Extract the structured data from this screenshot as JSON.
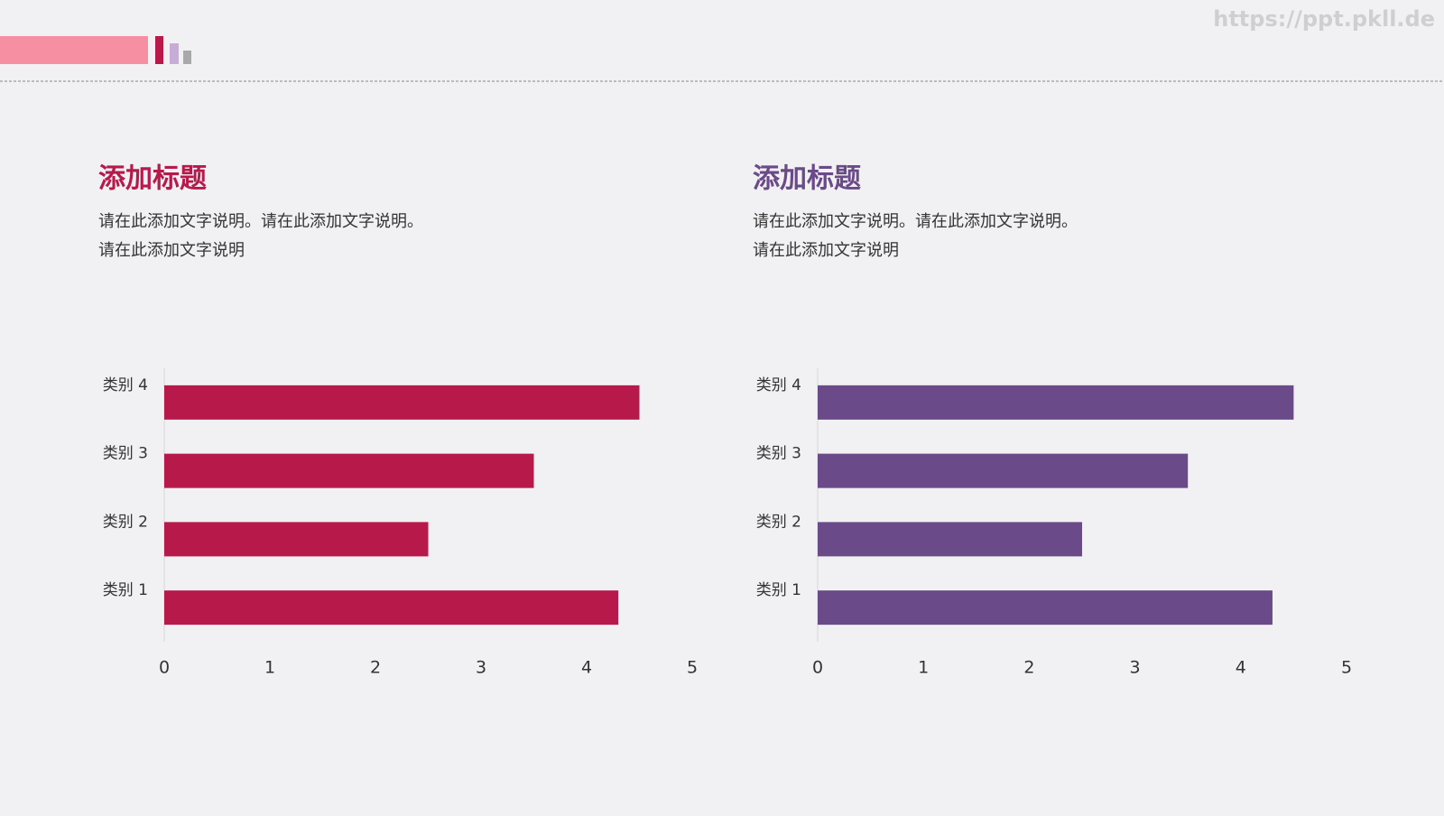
{
  "watermark": "https://ppt.pkll.de",
  "chart_data": [
    {
      "type": "bar",
      "orientation": "horizontal",
      "title": "添加标题",
      "description": [
        "请在此添加文字说明。请在此添加文字说明。",
        "请在此添加文字说明"
      ],
      "categories": [
        "类别 1",
        "类别 2",
        "类别 3",
        "类别 4"
      ],
      "values": [
        4.3,
        2.5,
        3.5,
        4.5
      ],
      "color": "#b8194b",
      "xlim": [
        0,
        5
      ],
      "xticks": [
        0,
        1,
        2,
        3,
        4,
        5
      ]
    },
    {
      "type": "bar",
      "orientation": "horizontal",
      "title": "添加标题",
      "description": [
        "请在此添加文字说明。请在此添加文字说明。",
        "请在此添加文字说明"
      ],
      "categories": [
        "类别 1",
        "类别 2",
        "类别 3",
        "类别 4"
      ],
      "values": [
        4.3,
        2.5,
        3.5,
        4.5
      ],
      "color": "#6b4a8a",
      "xlim": [
        0,
        5
      ],
      "xticks": [
        0,
        1,
        2,
        3,
        4,
        5
      ]
    }
  ]
}
